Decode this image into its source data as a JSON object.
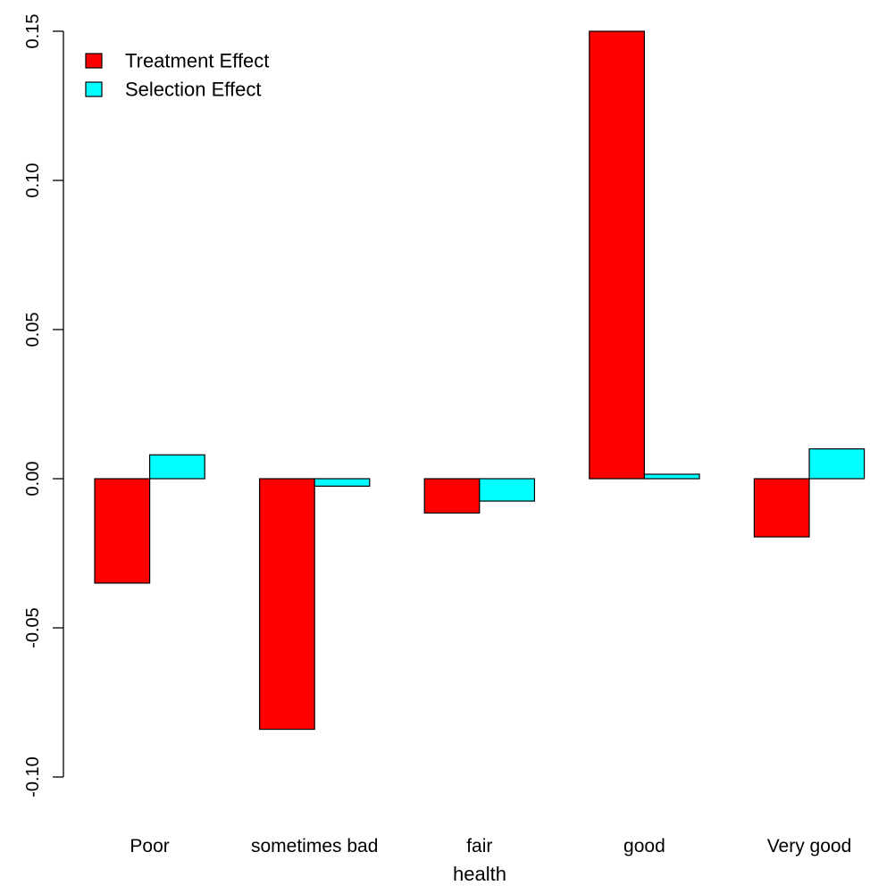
{
  "chart_data": {
    "type": "bar",
    "categories": [
      "Poor",
      "sometimes bad",
      "fair",
      "good",
      "Very good"
    ],
    "series": [
      {
        "name": "Treatment Effect",
        "color": "#ff0000",
        "values": [
          -0.035,
          -0.084,
          -0.0115,
          0.15,
          -0.0195
        ]
      },
      {
        "name": "Selection Effect",
        "color": "#00ffff",
        "values": [
          0.008,
          -0.0025,
          -0.0075,
          0.0015,
          0.01
        ]
      }
    ],
    "title": "",
    "xlabel": "health",
    "ylabel": "",
    "ylim": [
      -0.1,
      0.15
    ],
    "yticks": [
      -0.1,
      -0.05,
      0.0,
      0.05,
      0.1,
      0.15
    ],
    "ytick_labels": [
      "-0.10",
      "-0.05",
      "0.00",
      "0.05",
      "0.10",
      "0.15"
    ],
    "grid": false,
    "legend_position": "top-left"
  }
}
